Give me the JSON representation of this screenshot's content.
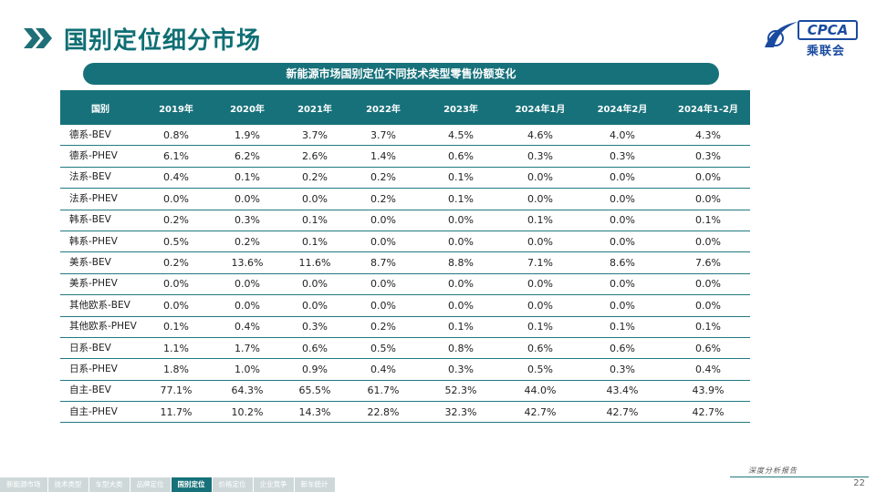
{
  "title": "国别定位细分市场",
  "logo": {
    "brand": "CPCA",
    "cn": "乘联会"
  },
  "banner": "新能源市场国别定位不同技术类型零售份额变化",
  "table": {
    "headers": [
      "国别",
      "2019年",
      "2020年",
      "2021年",
      "2022年",
      "2023年",
      "2024年1月",
      "2024年2月",
      "2024年1-2月"
    ],
    "rows": [
      [
        "德系-BEV",
        "0.8%",
        "1.9%",
        "3.7%",
        "3.7%",
        "4.5%",
        "4.6%",
        "4.0%",
        "4.3%"
      ],
      [
        "德系-PHEV",
        "6.1%",
        "6.2%",
        "2.6%",
        "1.4%",
        "0.6%",
        "0.3%",
        "0.3%",
        "0.3%"
      ],
      [
        "法系-BEV",
        "0.4%",
        "0.1%",
        "0.2%",
        "0.2%",
        "0.1%",
        "0.0%",
        "0.0%",
        "0.0%"
      ],
      [
        "法系-PHEV",
        "0.0%",
        "0.0%",
        "0.0%",
        "0.2%",
        "0.1%",
        "0.0%",
        "0.0%",
        "0.0%"
      ],
      [
        "韩系-BEV",
        "0.2%",
        "0.3%",
        "0.1%",
        "0.0%",
        "0.0%",
        "0.1%",
        "0.0%",
        "0.1%"
      ],
      [
        "韩系-PHEV",
        "0.5%",
        "0.2%",
        "0.1%",
        "0.0%",
        "0.0%",
        "0.0%",
        "0.0%",
        "0.0%"
      ],
      [
        "美系-BEV",
        "0.2%",
        "13.6%",
        "11.6%",
        "8.7%",
        "8.8%",
        "7.1%",
        "8.6%",
        "7.6%"
      ],
      [
        "美系-PHEV",
        "0.0%",
        "0.0%",
        "0.0%",
        "0.0%",
        "0.0%",
        "0.0%",
        "0.0%",
        "0.0%"
      ],
      [
        "其他欧系-BEV",
        "0.0%",
        "0.0%",
        "0.0%",
        "0.0%",
        "0.0%",
        "0.0%",
        "0.0%",
        "0.0%"
      ],
      [
        "其他欧系-PHEV",
        "0.1%",
        "0.4%",
        "0.3%",
        "0.2%",
        "0.1%",
        "0.1%",
        "0.1%",
        "0.1%"
      ],
      [
        "日系-BEV",
        "1.1%",
        "1.7%",
        "0.6%",
        "0.5%",
        "0.8%",
        "0.6%",
        "0.6%",
        "0.6%"
      ],
      [
        "日系-PHEV",
        "1.8%",
        "1.0%",
        "0.9%",
        "0.4%",
        "0.3%",
        "0.5%",
        "0.3%",
        "0.4%"
      ],
      [
        "自主-BEV",
        "77.1%",
        "64.3%",
        "65.5%",
        "61.7%",
        "52.3%",
        "44.0%",
        "43.4%",
        "43.9%"
      ],
      [
        "自主-PHEV",
        "11.7%",
        "10.2%",
        "14.3%",
        "22.8%",
        "32.3%",
        "42.7%",
        "42.7%",
        "42.7%"
      ]
    ]
  },
  "footer": {
    "tagline": "深度分析报告",
    "page": "22"
  },
  "nav": [
    {
      "label": "新能源市场",
      "active": false
    },
    {
      "label": "技术类型",
      "active": false
    },
    {
      "label": "车型大类",
      "active": false
    },
    {
      "label": "品牌定位",
      "active": false
    },
    {
      "label": "国别定位",
      "active": true
    },
    {
      "label": "价格定位",
      "active": false
    },
    {
      "label": "企业竞争",
      "active": false
    },
    {
      "label": "新车统计",
      "active": false
    }
  ],
  "colors": {
    "accent": "#17717a",
    "title": "#0f6f74",
    "logo": "#1a4aa0"
  }
}
